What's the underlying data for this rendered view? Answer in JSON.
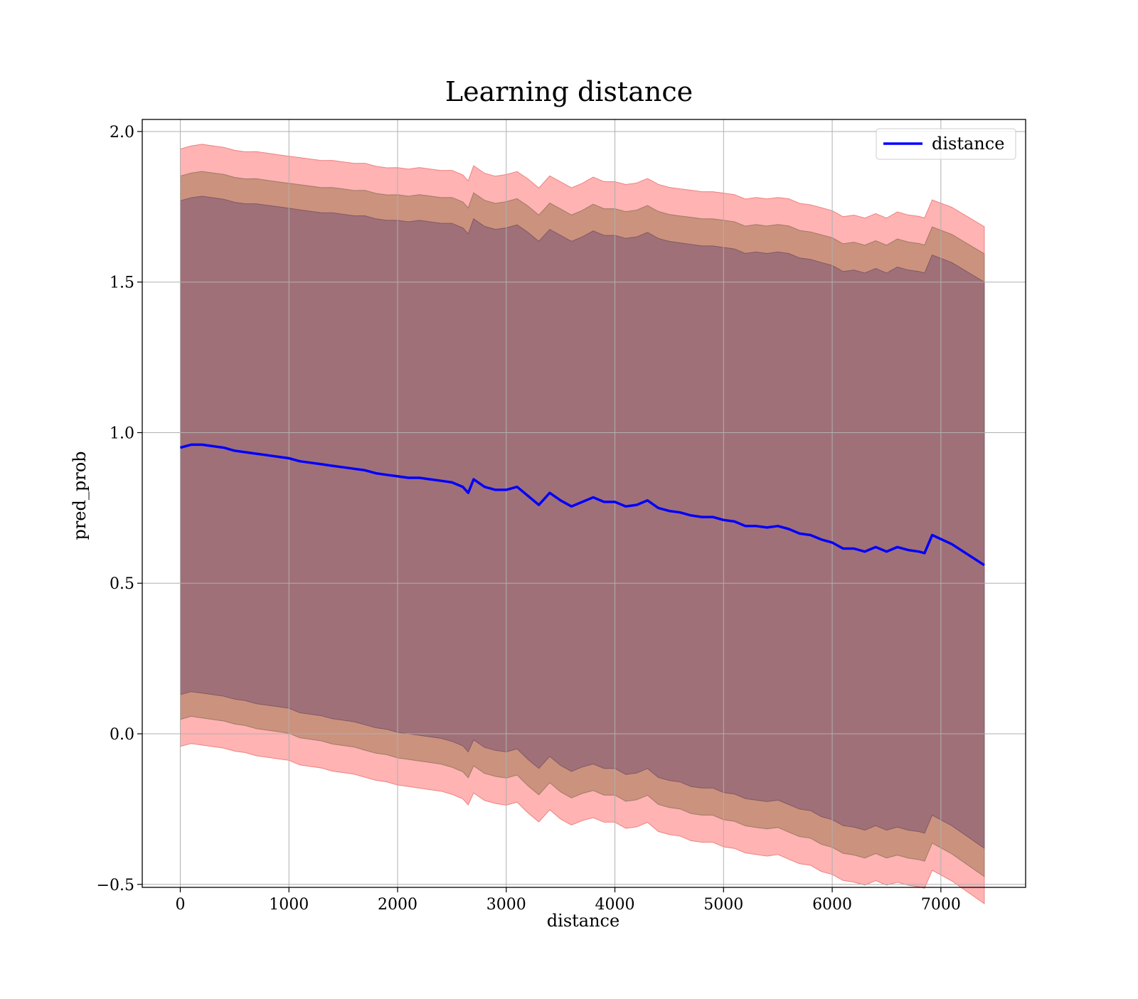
{
  "chart_data": {
    "type": "line",
    "title": "Learning distance",
    "xlabel": "distance",
    "ylabel": "pred_prob",
    "xlim": [
      -350,
      7780
    ],
    "ylim": [
      -0.51,
      2.04
    ],
    "xticks": [
      0,
      1000,
      2000,
      3000,
      4000,
      5000,
      6000,
      7000
    ],
    "yticks": [
      -0.5,
      0.0,
      0.5,
      1.0,
      1.5,
      2.0
    ],
    "xtick_labels": [
      "0",
      "1000",
      "2000",
      "3000",
      "4000",
      "5000",
      "6000",
      "7000"
    ],
    "ytick_labels": [
      "−0.5",
      "0.0",
      "0.5",
      "1.0",
      "1.5",
      "2.0"
    ],
    "grid": true,
    "legend_position": "top-right",
    "colors": {
      "line": "#0000ff",
      "band_outer": "#ff9999",
      "band_middle": "#c8907a",
      "band_inner": "#a07078",
      "grid": "#b0b0b0"
    },
    "series": [
      {
        "name": "distance",
        "x": [
          0,
          100,
          200,
          300,
          400,
          500,
          600,
          700,
          800,
          900,
          1000,
          1100,
          1200,
          1300,
          1400,
          1500,
          1600,
          1700,
          1800,
          1900,
          2000,
          2100,
          2200,
          2300,
          2400,
          2500,
          2600,
          2650,
          2700,
          2800,
          2900,
          3000,
          3100,
          3200,
          3300,
          3400,
          3500,
          3600,
          3700,
          3800,
          3900,
          4000,
          4100,
          4200,
          4300,
          4400,
          4500,
          4600,
          4700,
          4800,
          4900,
          5000,
          5100,
          5200,
          5300,
          5400,
          5500,
          5600,
          5700,
          5800,
          5900,
          6000,
          6100,
          6200,
          6300,
          6400,
          6500,
          6600,
          6700,
          6800,
          6850,
          6920,
          7100,
          7400
        ],
        "y": [
          0.95,
          0.96,
          0.96,
          0.955,
          0.95,
          0.94,
          0.935,
          0.93,
          0.925,
          0.92,
          0.915,
          0.905,
          0.9,
          0.895,
          0.89,
          0.885,
          0.88,
          0.875,
          0.865,
          0.86,
          0.855,
          0.85,
          0.85,
          0.845,
          0.84,
          0.835,
          0.82,
          0.8,
          0.845,
          0.82,
          0.81,
          0.81,
          0.82,
          0.79,
          0.76,
          0.8,
          0.775,
          0.755,
          0.77,
          0.785,
          0.77,
          0.77,
          0.755,
          0.76,
          0.775,
          0.75,
          0.74,
          0.735,
          0.725,
          0.72,
          0.72,
          0.71,
          0.705,
          0.69,
          0.69,
          0.685,
          0.69,
          0.68,
          0.665,
          0.66,
          0.645,
          0.635,
          0.615,
          0.615,
          0.605,
          0.62,
          0.605,
          0.62,
          0.61,
          0.605,
          0.6,
          0.66,
          0.63,
          0.56
        ],
        "std": [
          0.82,
          0.82,
          0.825,
          0.825,
          0.825,
          0.825,
          0.825,
          0.83,
          0.83,
          0.83,
          0.83,
          0.835,
          0.835,
          0.835,
          0.84,
          0.84,
          0.84,
          0.845,
          0.845,
          0.845,
          0.85,
          0.85,
          0.855,
          0.855,
          0.855,
          0.86,
          0.86,
          0.86,
          0.865,
          0.865,
          0.865,
          0.87,
          0.87,
          0.875,
          0.875,
          0.875,
          0.88,
          0.88,
          0.88,
          0.885,
          0.885,
          0.885,
          0.89,
          0.89,
          0.89,
          0.895,
          0.895,
          0.895,
          0.9,
          0.9,
          0.9,
          0.905,
          0.905,
          0.905,
          0.91,
          0.91,
          0.91,
          0.915,
          0.915,
          0.915,
          0.92,
          0.92,
          0.92,
          0.925,
          0.925,
          0.925,
          0.925,
          0.93,
          0.93,
          0.93,
          0.93,
          0.93,
          0.935,
          0.94
        ],
        "band_middle_halfwidth_factor": 1.1,
        "band_outer_offset": 0.09
      }
    ]
  }
}
